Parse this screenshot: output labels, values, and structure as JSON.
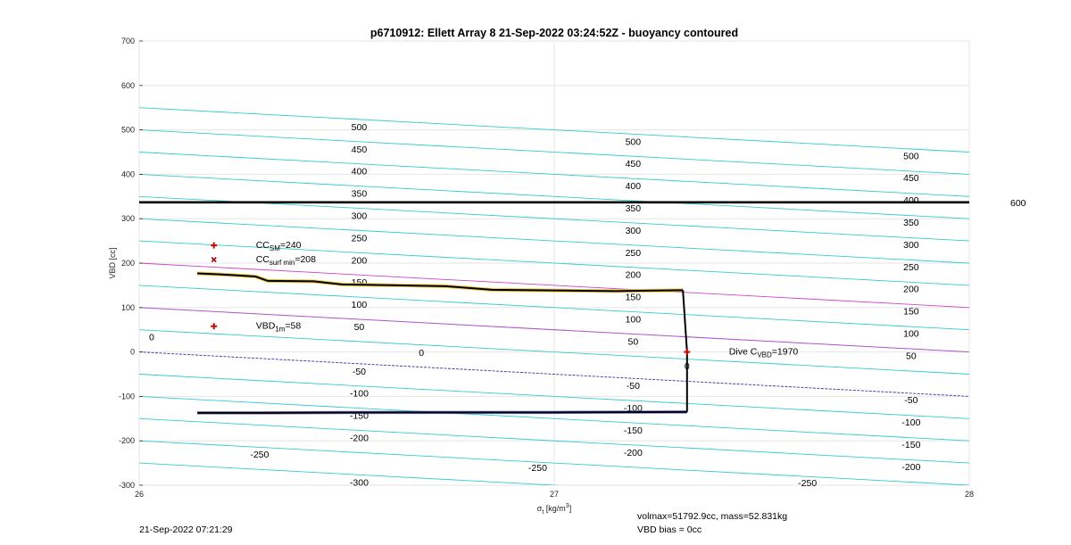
{
  "chart_data": {
    "type": "line",
    "title": "p6710912: Ellett Array 8 21-Sep-2022 03:24:52Z - buoyancy contoured",
    "xlabel": "σ_t [kg/m^3]",
    "ylabel": "VBD [cc]",
    "xlim": [
      26,
      28
    ],
    "ylim": [
      -300,
      700
    ],
    "xticks": [
      26,
      27,
      28
    ],
    "yticks": [
      -300,
      -200,
      -100,
      0,
      100,
      200,
      300,
      400,
      500,
      600,
      700
    ],
    "grid": true,
    "contour_slope_per_sigma": -50,
    "contours_cyan": [
      -350,
      -300,
      -250,
      -200,
      -150,
      -100,
      -50,
      50,
      100,
      150,
      250,
      300,
      350,
      400,
      450,
      500,
      550
    ],
    "contours_magenta": [
      100,
      200
    ],
    "contour_zero": 0,
    "contour_labels": [
      {
        "text": "500",
        "x": 26.53,
        "y": 505
      },
      {
        "text": "450",
        "x": 26.53,
        "y": 455
      },
      {
        "text": "400",
        "x": 26.53,
        "y": 405
      },
      {
        "text": "350",
        "x": 26.53,
        "y": 355
      },
      {
        "text": "300",
        "x": 26.53,
        "y": 305
      },
      {
        "text": "250",
        "x": 26.53,
        "y": 255
      },
      {
        "text": "200",
        "x": 26.53,
        "y": 205
      },
      {
        "text": "150",
        "x": 26.53,
        "y": 155
      },
      {
        "text": "100",
        "x": 26.53,
        "y": 105
      },
      {
        "text": "50",
        "x": 26.53,
        "y": 55
      },
      {
        "text": "0",
        "x": 26.68,
        "y": -3
      },
      {
        "text": "-50",
        "x": 26.53,
        "y": -45
      },
      {
        "text": "-100",
        "x": 26.53,
        "y": -95
      },
      {
        "text": "-150",
        "x": 26.53,
        "y": -145
      },
      {
        "text": "-200",
        "x": 26.53,
        "y": -195
      },
      {
        "text": "-250",
        "x": 26.29,
        "y": -232
      },
      {
        "text": "-300",
        "x": 26.53,
        "y": -295
      },
      {
        "text": "0",
        "x": 26.03,
        "y": 32
      },
      {
        "text": "500",
        "x": 27.19,
        "y": 472
      },
      {
        "text": "450",
        "x": 27.19,
        "y": 422
      },
      {
        "text": "400",
        "x": 27.19,
        "y": 372
      },
      {
        "text": "350",
        "x": 27.19,
        "y": 322
      },
      {
        "text": "300",
        "x": 27.19,
        "y": 272
      },
      {
        "text": "250",
        "x": 27.19,
        "y": 222
      },
      {
        "text": "200",
        "x": 27.19,
        "y": 172
      },
      {
        "text": "150",
        "x": 27.19,
        "y": 122
      },
      {
        "text": "100",
        "x": 27.19,
        "y": 72
      },
      {
        "text": "50",
        "x": 27.19,
        "y": 22
      },
      {
        "text": "0",
        "x": 27.32,
        "y": -33
      },
      {
        "text": "-50",
        "x": 27.19,
        "y": -78
      },
      {
        "text": "-100",
        "x": 27.19,
        "y": -128
      },
      {
        "text": "-150",
        "x": 27.19,
        "y": -178
      },
      {
        "text": "-200",
        "x": 27.19,
        "y": -228
      },
      {
        "text": "-250",
        "x": 27.61,
        "y": -296
      },
      {
        "text": "-250",
        "x": 26.96,
        "y": -262
      },
      {
        "text": "500",
        "x": 27.86,
        "y": 440
      },
      {
        "text": "450",
        "x": 27.86,
        "y": 390
      },
      {
        "text": "400",
        "x": 27.86,
        "y": 340
      },
      {
        "text": "350",
        "x": 27.86,
        "y": 290
      },
      {
        "text": "300",
        "x": 27.86,
        "y": 240
      },
      {
        "text": "250",
        "x": 27.86,
        "y": 190
      },
      {
        "text": "200",
        "x": 27.86,
        "y": 140
      },
      {
        "text": "150",
        "x": 27.86,
        "y": 90
      },
      {
        "text": "100",
        "x": 27.86,
        "y": 40
      },
      {
        "text": "50",
        "x": 27.86,
        "y": -10
      },
      {
        "text": "-50",
        "x": 27.86,
        "y": -110
      },
      {
        "text": "-100",
        "x": 27.86,
        "y": -160
      },
      {
        "text": "-150",
        "x": 27.86,
        "y": -210
      },
      {
        "text": "-200",
        "x": 27.86,
        "y": -260
      }
    ],
    "hline": {
      "y": 337,
      "label": "600"
    },
    "series": [
      {
        "x": [
          26.14,
          26.19,
          26.28,
          26.31,
          26.42,
          26.49,
          26.62,
          26.74,
          26.85,
          26.95,
          27.05,
          27.15,
          27.22,
          27.31
        ],
        "y": [
          177,
          175,
          170,
          160,
          159,
          152,
          150,
          148,
          140,
          139,
          138,
          137,
          138,
          139
        ]
      },
      {
        "x": [
          27.31,
          27.32,
          27.32
        ],
        "y": [
          139,
          0,
          -135
        ]
      },
      {
        "x": [
          27.32,
          27.0,
          26.6,
          26.3,
          26.14
        ],
        "y": [
          -135,
          -136,
          -136,
          -137,
          -137
        ]
      }
    ],
    "markers": [
      {
        "type": "plus",
        "color": "#d40000",
        "x": 26.18,
        "y": 240,
        "label": "CC",
        "sub": "SM",
        "suffix": "=240"
      },
      {
        "type": "cross",
        "color": "#a00000",
        "x": 26.18,
        "y": 208,
        "label": "CC",
        "sub": "surf min",
        "suffix": "=208"
      },
      {
        "type": "plus",
        "color": "#d40000",
        "x": 26.18,
        "y": 58,
        "label": "VBD",
        "sub": "1m",
        "suffix": "=58"
      },
      {
        "type": "plus",
        "color": "#d40000",
        "x": 27.32,
        "y": 0,
        "label": "Dive C",
        "sub": "VBD",
        "suffix": "=1970"
      }
    ]
  },
  "footer": {
    "date": "21-Sep-2022 07:21:29",
    "volmax": "volmax=51792.9cc, mass=52.831kg",
    "vbd_bias": "VBD bias = 0cc"
  }
}
